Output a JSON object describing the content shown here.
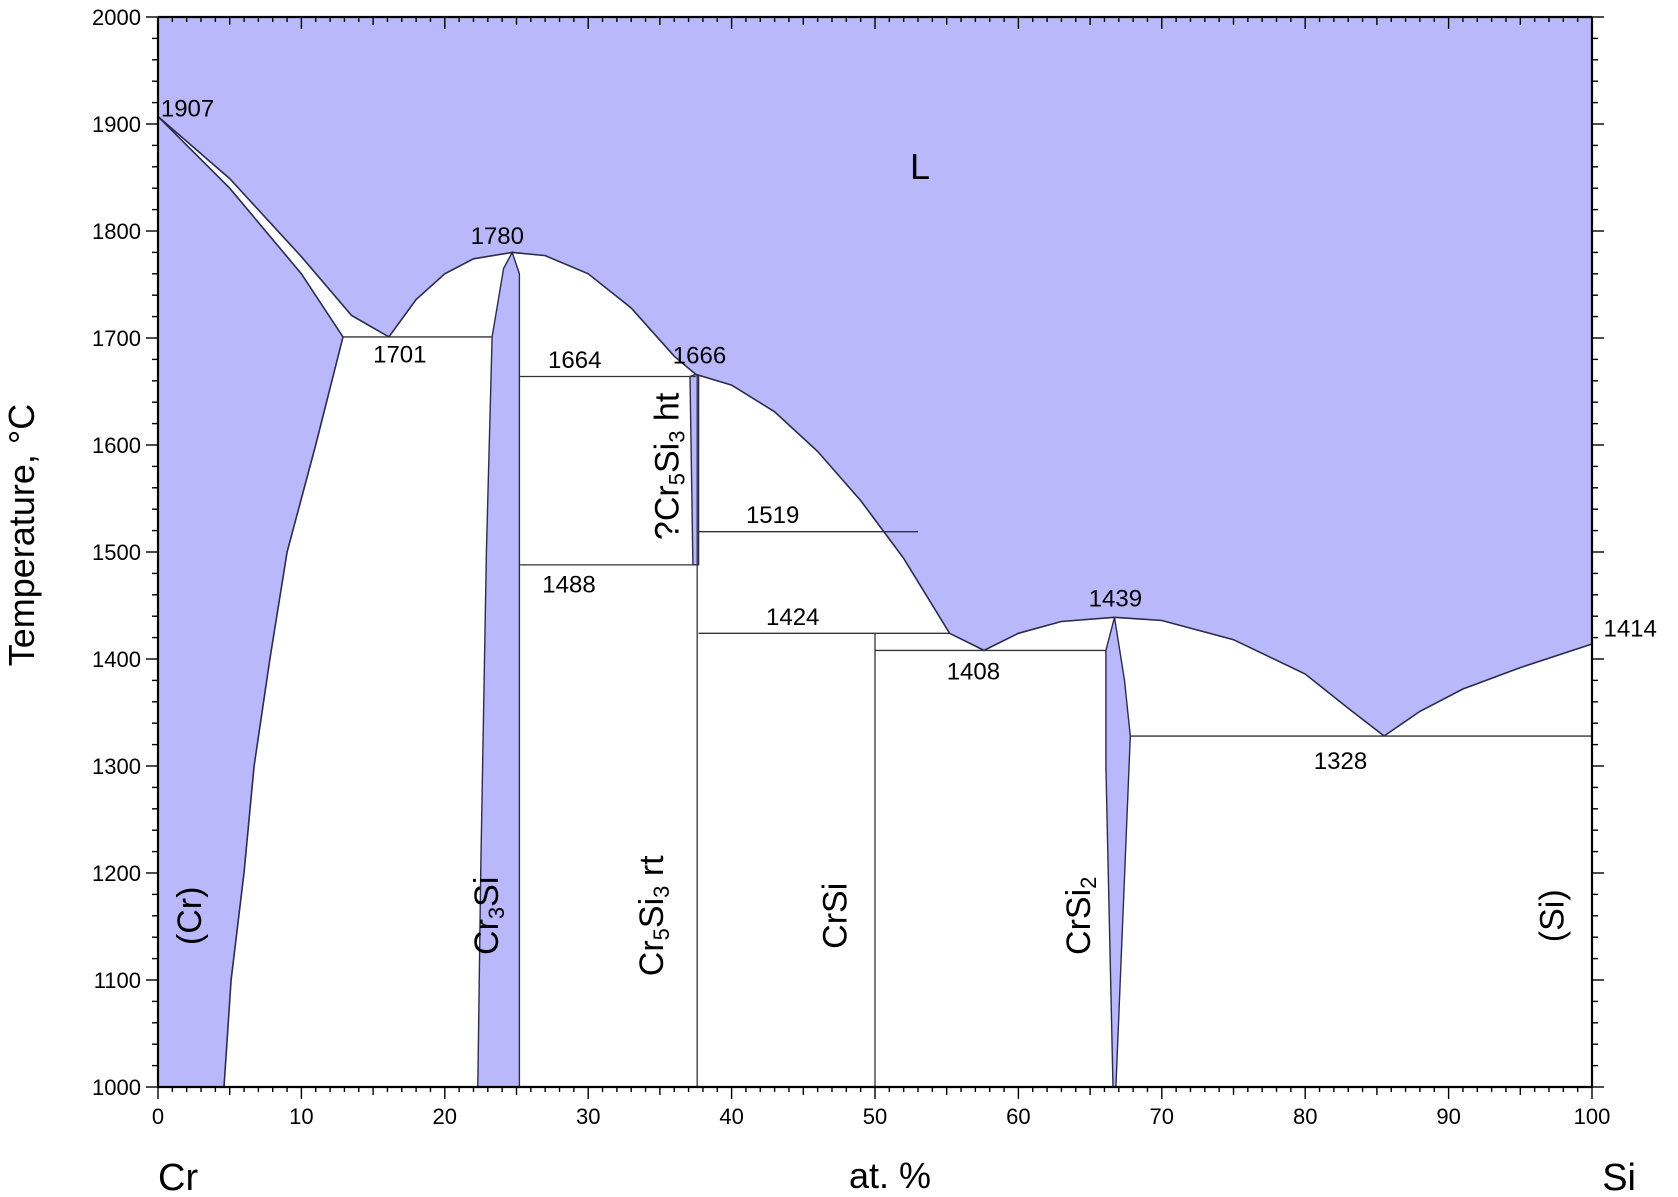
{
  "chart_data": {
    "type": "phase-diagram",
    "xlabel": "at. %",
    "ylabel": "Temperature, °C",
    "xlim": [
      0,
      100
    ],
    "ylim": [
      1000,
      2000
    ],
    "x_ticks": [
      0,
      10,
      20,
      30,
      40,
      50,
      60,
      70,
      80,
      90,
      100
    ],
    "y_ticks": [
      1000,
      1100,
      1200,
      1300,
      1400,
      1500,
      1600,
      1700,
      1800,
      1900,
      2000
    ],
    "element_left": "Cr",
    "element_right": "Si",
    "liquid_label": "L",
    "colors": {
      "single_phase_fill": "#b8b8fb",
      "boundary": "#2b2b50"
    },
    "phases": [
      {
        "id": "cr",
        "label": "(Cr)",
        "x": 3.0,
        "y": 1160
      },
      {
        "id": "cr3si",
        "label": "Cr",
        "sub": "3",
        "label2": "Si",
        "x": 23.7,
        "y": 1160
      },
      {
        "id": "cr5si3rt",
        "label": "Cr",
        "sub": "5",
        "label2": "Si",
        "sub2": "3",
        "label3": " rt",
        "x": 35.2,
        "y": 1160
      },
      {
        "id": "crsi",
        "label": "CrSi",
        "x": 48.0,
        "y": 1160
      },
      {
        "id": "crsi2",
        "label": "CrSi",
        "sub": "2",
        "x": 65.0,
        "y": 1160
      },
      {
        "id": "si",
        "label": "(Si)",
        "x": 98.0,
        "y": 1160
      },
      {
        "id": "cr5si3ht",
        "label": "?Cr",
        "sub": "5",
        "label2": "Si",
        "sub2": "3",
        "label3": " ht",
        "x": 36.3,
        "y": 1580
      }
    ],
    "annotations": [
      {
        "text": "1907",
        "x": 0.2,
        "y": 1907
      },
      {
        "text": "1780",
        "x": 21.8,
        "y": 1788
      },
      {
        "text": "1701",
        "x": 15.0,
        "y": 1677
      },
      {
        "text": "1664",
        "x": 27.2,
        "y": 1672
      },
      {
        "text": "1666",
        "x": 35.9,
        "y": 1676
      },
      {
        "text": "1519",
        "x": 41.0,
        "y": 1527
      },
      {
        "text": "1488",
        "x": 26.8,
        "y": 1462
      },
      {
        "text": "1424",
        "x": 42.4,
        "y": 1432
      },
      {
        "text": "1408",
        "x": 55.0,
        "y": 1381
      },
      {
        "text": "1439",
        "x": 64.9,
        "y": 1449
      },
      {
        "text": "1328",
        "x": 80.6,
        "y": 1297
      },
      {
        "text": "1414",
        "x": 100.8,
        "y": 1421
      }
    ],
    "invariants": [
      {
        "T": 1907,
        "type": "melting",
        "x": [
          0
        ]
      },
      {
        "T": 1780,
        "type": "congruent melting",
        "x": [
          24.7
        ]
      },
      {
        "T": 1701,
        "type": "eutectic",
        "x": [
          12.9,
          16.1,
          23.3
        ]
      },
      {
        "T": 1666,
        "type": "congruent melting",
        "x": [
          37.5
        ]
      },
      {
        "T": 1664,
        "type": "peritectoid/eutectic",
        "x": [
          25.2,
          37.5
        ]
      },
      {
        "T": 1519,
        "type": "eutectoid",
        "x": [
          37.7,
          53.0
        ]
      },
      {
        "T": 1488,
        "type": "eutectoid",
        "x": [
          25.2,
          37.5
        ]
      },
      {
        "T": 1424,
        "type": "peritectic",
        "x": [
          37.7,
          50.0,
          55.2
        ]
      },
      {
        "T": 1408,
        "type": "eutectic",
        "x": [
          50.0,
          57.6,
          66.1
        ]
      },
      {
        "T": 1439,
        "type": "congruent melting",
        "x": [
          66.7
        ]
      },
      {
        "T": 1328,
        "type": "eutectic",
        "x": [
          67.8,
          85.5,
          100
        ]
      },
      {
        "T": 1414,
        "type": "melting",
        "x": [
          100
        ]
      }
    ],
    "liquidus": [
      {
        "id": "cr-side",
        "points": [
          [
            0,
            1907
          ],
          [
            5,
            1849
          ],
          [
            10,
            1776
          ],
          [
            13.5,
            1721
          ],
          [
            16.1,
            1701
          ]
        ]
      },
      {
        "id": "cr3si-dome",
        "points": [
          [
            16.1,
            1701
          ],
          [
            18,
            1736
          ],
          [
            20,
            1760
          ],
          [
            22,
            1774
          ],
          [
            24.7,
            1780
          ],
          [
            27,
            1777
          ],
          [
            30,
            1760
          ],
          [
            33,
            1728
          ],
          [
            36,
            1683
          ],
          [
            37.5,
            1666
          ]
        ]
      },
      {
        "id": "cr5si3-side",
        "points": [
          [
            37.5,
            1666
          ],
          [
            40,
            1656
          ],
          [
            43,
            1631
          ],
          [
            46,
            1594
          ],
          [
            49,
            1548
          ],
          [
            52,
            1494
          ],
          [
            55.2,
            1424
          ],
          [
            57.6,
            1408
          ]
        ]
      },
      {
        "id": "crsi2-dome",
        "points": [
          [
            57.6,
            1408
          ],
          [
            60,
            1424
          ],
          [
            63,
            1435
          ],
          [
            66.7,
            1439
          ],
          [
            70,
            1436
          ],
          [
            75,
            1418
          ],
          [
            80,
            1386
          ],
          [
            83,
            1354
          ],
          [
            85.5,
            1328
          ]
        ]
      },
      {
        "id": "si-side",
        "points": [
          [
            85.5,
            1328
          ],
          [
            88,
            1351
          ],
          [
            91,
            1372
          ],
          [
            95,
            1392
          ],
          [
            100,
            1414
          ]
        ]
      }
    ],
    "solidus_cr": [
      [
        0,
        1907
      ],
      [
        5,
        1840
      ],
      [
        10,
        1760
      ],
      [
        12.9,
        1701
      ]
    ],
    "solvus_cr": [
      [
        12.9,
        1701
      ],
      [
        11,
        1600
      ],
      [
        9,
        1500
      ],
      [
        7.8,
        1400
      ],
      [
        6.7,
        1300
      ],
      [
        6.0,
        1200
      ],
      [
        5.1,
        1100
      ],
      [
        4.6,
        1000
      ]
    ],
    "cr3si_region": [
      [
        22.3,
        1000
      ],
      [
        22.5,
        1200
      ],
      [
        22.9,
        1500
      ],
      [
        23.3,
        1701
      ],
      [
        24.1,
        1765
      ],
      [
        24.7,
        1780
      ],
      [
        25.2,
        1760
      ],
      [
        25.2,
        1664
      ],
      [
        25.2,
        1000
      ]
    ],
    "cr5si3_region": [
      [
        37.5,
        1666
      ],
      [
        37.1,
        1664
      ],
      [
        37.3,
        1488
      ],
      [
        37.7,
        1488
      ],
      [
        37.7,
        1664
      ]
    ],
    "crsi2_region": [
      [
        66.6,
        1000
      ],
      [
        66.1,
        1300
      ],
      [
        66.1,
        1408
      ],
      [
        66.7,
        1439
      ],
      [
        67.4,
        1380
      ],
      [
        67.8,
        1328
      ],
      [
        66.8,
        1000
      ]
    ],
    "horizontal_lines": [
      {
        "T": 1701,
        "x": [
          12.9,
          23.3
        ]
      },
      {
        "T": 1664,
        "x": [
          25.2,
          37.5
        ]
      },
      {
        "T": 1488,
        "x": [
          25.2,
          37.5
        ]
      },
      {
        "T": 1519,
        "x": [
          37.7,
          53.0
        ]
      },
      {
        "T": 1424,
        "x": [
          37.7,
          55.2
        ]
      },
      {
        "T": 1408,
        "x": [
          50.0,
          66.1
        ]
      },
      {
        "T": 1328,
        "x": [
          67.8,
          100
        ]
      }
    ],
    "vertical_lines": [
      {
        "x": 37.6,
        "T": [
          1000,
          1666
        ]
      },
      {
        "x": 50.0,
        "T": [
          1000,
          1424
        ]
      },
      {
        "x": 100,
        "T": [
          1000,
          1414
        ]
      }
    ]
  }
}
